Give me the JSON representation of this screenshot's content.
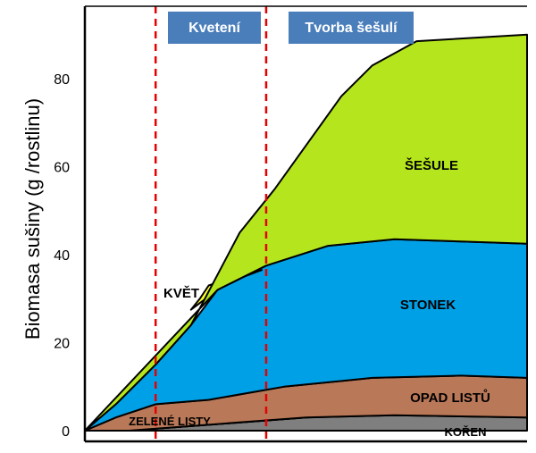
{
  "chart_data": {
    "type": "area",
    "ylabel": "Biomasa sušiny (g /rostlinu)",
    "yticks": [
      "0",
      "20",
      "40",
      "60",
      "80"
    ],
    "ylim": [
      0,
      94
    ],
    "x_domain": [
      0,
      100
    ],
    "phases": [
      {
        "label": "Kvetení",
        "start_x": 16,
        "end_x": 41
      },
      {
        "label": "Tvorba šešulí",
        "start_x": 41,
        "end_x": 70
      }
    ],
    "phase_boundaries_x": [
      16,
      41
    ],
    "series": [
      {
        "name": "KOŘEN",
        "color": "#7f7f7f",
        "lower": [
          [
            0,
            0
          ],
          [
            100,
            0
          ]
        ],
        "upper": [
          [
            0,
            0
          ],
          [
            10,
            0
          ],
          [
            30,
            1.5
          ],
          [
            50,
            3
          ],
          [
            70,
            3.5
          ],
          [
            100,
            3
          ]
        ]
      },
      {
        "name": "ZELENÉ LISTY",
        "color": "#22a838",
        "lower": [
          [
            0,
            0
          ],
          [
            10,
            0
          ],
          [
            30,
            1.5
          ],
          [
            50,
            3
          ]
        ],
        "upper": [
          [
            0,
            0
          ],
          [
            8,
            1.5
          ],
          [
            12,
            3
          ],
          [
            20,
            5
          ],
          [
            30,
            5.5
          ],
          [
            45,
            7.5
          ],
          [
            55,
            7
          ],
          [
            66,
            4
          ]
        ]
      },
      {
        "name": "OPAD LISTŮ",
        "color": "#b97858",
        "lower": [
          [
            0,
            0
          ],
          [
            10,
            0
          ],
          [
            30,
            1.5
          ],
          [
            50,
            3
          ],
          [
            70,
            3.5
          ],
          [
            100,
            3
          ]
        ],
        "upper": [
          [
            0,
            0
          ],
          [
            7,
            3
          ],
          [
            16,
            6
          ],
          [
            28,
            7
          ],
          [
            45,
            10
          ],
          [
            65,
            12
          ],
          [
            85,
            12.5
          ],
          [
            100,
            12
          ]
        ]
      },
      {
        "name": "STONEK",
        "color": "#00a0e6",
        "lower": [
          [
            0,
            0
          ],
          [
            7,
            3
          ],
          [
            16,
            6
          ],
          [
            28,
            7
          ],
          [
            45,
            10
          ],
          [
            65,
            12
          ],
          [
            85,
            12.5
          ],
          [
            100,
            12
          ]
        ],
        "upper": [
          [
            0,
            0
          ],
          [
            7,
            6
          ],
          [
            16,
            15
          ],
          [
            24,
            24
          ],
          [
            30,
            32
          ],
          [
            41,
            37.5
          ],
          [
            55,
            42
          ],
          [
            70,
            43.5
          ],
          [
            85,
            43
          ],
          [
            100,
            42.5
          ]
        ]
      },
      {
        "name": "KVĚT",
        "color": "#ffff33",
        "lower": [
          [
            24,
            27.5
          ],
          [
            26,
            29
          ],
          [
            30,
            32
          ],
          [
            36,
            35
          ],
          [
            40,
            36.5
          ]
        ],
        "upper": [
          [
            24,
            27.5
          ],
          [
            26,
            30
          ],
          [
            28,
            33
          ],
          [
            31,
            34
          ],
          [
            35,
            35.5
          ],
          [
            40,
            36.5
          ]
        ]
      },
      {
        "name": "ŠEŠULE",
        "color": "#b5e61d",
        "lower": [
          [
            30,
            32
          ],
          [
            41,
            37.5
          ],
          [
            55,
            42
          ],
          [
            70,
            43.5
          ],
          [
            85,
            43
          ],
          [
            100,
            42.5
          ]
        ],
        "upper": [
          [
            0,
            0
          ],
          [
            7,
            6
          ],
          [
            16,
            15
          ],
          [
            24,
            24
          ],
          [
            35,
            45
          ],
          [
            43,
            55
          ],
          [
            58,
            76
          ],
          [
            65,
            83
          ],
          [
            75,
            88.5
          ],
          [
            100,
            90
          ]
        ]
      }
    ],
    "area_labels": {
      "sesule": "ŠEŠULE",
      "stonek": "STONEK",
      "kvet": "KVĚT",
      "opad": "OPAD LISTŮ",
      "zelene": "ZELENÉ LISTY",
      "koren": "KOŘEN"
    }
  }
}
